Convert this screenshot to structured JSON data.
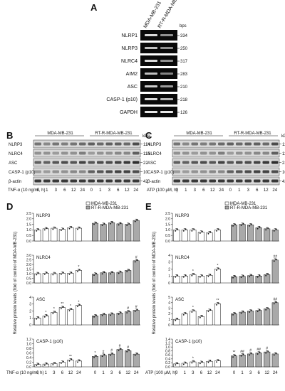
{
  "panels": {
    "A": "A",
    "B": "B",
    "C": "C",
    "D": "D",
    "E": "E"
  },
  "gel": {
    "lane1": "MDA-MB-231",
    "lane2": "RT-R-MDA-MB-231",
    "bps_label": "bps",
    "rows": [
      {
        "name": "NLRP1",
        "bps": "334",
        "i1": 0.85,
        "i2": 0.55
      },
      {
        "name": "NLRP3",
        "bps": "250",
        "i1": 0.75,
        "i2": 0.55
      },
      {
        "name": "NLRC4",
        "bps": "317",
        "i1": 0.85,
        "i2": 0.55
      },
      {
        "name": "AIM2",
        "bps": "283",
        "i1": 0.75,
        "i2": 0.5
      },
      {
        "name": "ASC",
        "bps": "210",
        "i1": 0.8,
        "i2": 0.6
      },
      {
        "name": "CASP-1 (p10)",
        "bps": "218",
        "i1": 0.85,
        "i2": 0.7
      },
      {
        "name": "GAPDH",
        "bps": "126",
        "i1": 0.9,
        "i2": 0.9
      }
    ]
  },
  "blots": {
    "B": {
      "group1": "MDA-MB-231",
      "group2": "RT-R-MDA-MB-231",
      "kda": "kDa",
      "treatment": "TNF-α (10 ng/ml, h)",
      "times": [
        "0",
        "1",
        "3",
        "6",
        "12",
        "24",
        "0",
        "1",
        "3",
        "6",
        "12",
        "24"
      ],
      "bands": [
        {
          "name": "NLRP3",
          "kda": "114"
        },
        {
          "name": "NLRC4",
          "kda": "116"
        },
        {
          "name": "ASC",
          "kda": "22"
        },
        {
          "name": "CASP-1 (p10)",
          "kda": "10"
        },
        {
          "name": "β-actin",
          "kda": "42"
        }
      ]
    },
    "C": {
      "group1": "MDA-MB-231",
      "group2": "RT-R-MDA-MB-231",
      "kda": "kDa",
      "treatment": "ATP (100 μM, h)",
      "times": [
        "0",
        "1",
        "3",
        "6",
        "12",
        "24",
        "0",
        "1",
        "3",
        "6",
        "12",
        "24"
      ],
      "bands": [
        {
          "name": "NLRP3",
          "kda": "114"
        },
        {
          "name": "NLRC4",
          "kda": "116"
        },
        {
          "name": "ASC",
          "kda": "22"
        },
        {
          "name": "CASP-1 (p10)",
          "kda": "10"
        },
        {
          "name": "β-actin",
          "kda": "42"
        }
      ]
    }
  },
  "chart_data": [
    {
      "type": "bar",
      "panel": "D",
      "ylabel": "Relative protein levels (fold of control of MDA-MB-231)",
      "xlabel": "TNF-α (10 ng/ml, h)",
      "categories": [
        "0",
        "1",
        "3",
        "6",
        "12",
        "24",
        "0",
        "1",
        "3",
        "6",
        "12",
        "24"
      ],
      "legend": [
        "MDA-MB-231",
        "RT-R-MDA-MB-231"
      ],
      "legend_colors": [
        "#ffffff",
        "#a9a9a9"
      ],
      "subplots": [
        {
          "title": "NLRP3",
          "ylim": [
            0,
            2.5
          ],
          "ticks": [
            "0.0",
            "0.5",
            "1.0",
            "1.5",
            "2.0",
            "2.5"
          ],
          "values": [
            1.0,
            1.1,
            1.15,
            1.05,
            1.2,
            1.15,
            1.6,
            1.5,
            1.65,
            1.55,
            1.5,
            1.85
          ],
          "marks": [
            "",
            "",
            "",
            "",
            "",
            "",
            "",
            "",
            "",
            "",
            "",
            ""
          ]
        },
        {
          "title": "NLRC4",
          "ylim": [
            0,
            3.0
          ],
          "ticks": [
            "0.0",
            "0.5",
            "1.0",
            "1.5",
            "2.0",
            "2.5",
            "3.0"
          ],
          "values": [
            1.0,
            1.05,
            1.0,
            1.05,
            1.05,
            1.35,
            0.95,
            1.1,
            1.1,
            1.15,
            1.35,
            2.4
          ],
          "marks": [
            "",
            "",
            "",
            "",
            "",
            "*",
            "",
            "",
            "",
            "",
            "",
            "#"
          ]
        },
        {
          "title": "ASC",
          "ylim": [
            0,
            4.0
          ],
          "ticks": [
            "0",
            "1",
            "2",
            "3",
            "4"
          ],
          "values": [
            1.0,
            1.3,
            1.8,
            2.5,
            2.2,
            2.8,
            1.3,
            1.5,
            1.55,
            1.7,
            1.9,
            2.1
          ],
          "marks": [
            "",
            "*",
            "*",
            "**",
            "*",
            "*",
            "",
            "",
            "",
            "",
            "#",
            "#"
          ]
        },
        {
          "title": "CASP-1 (p10)",
          "ylim": [
            0,
            1.2
          ],
          "ticks": [
            "0.0",
            "0.2",
            "0.4",
            "0.6",
            "0.8",
            "1.0",
            "1.2"
          ],
          "values": [
            0.1,
            0.12,
            0.14,
            0.2,
            0.3,
            0.25,
            0.45,
            0.5,
            0.55,
            0.75,
            0.7,
            0.55
          ],
          "marks": [
            "",
            "",
            "",
            "",
            "**",
            "",
            "*",
            "#",
            "#",
            "#",
            "#",
            ""
          ]
        }
      ]
    },
    {
      "type": "bar",
      "panel": "E",
      "ylabel": "Relative protein levels (fold of control of MDA-MB-231)",
      "xlabel": "ATP (100 μM, h)",
      "categories": [
        "0",
        "1",
        "3",
        "6",
        "12",
        "24",
        "0",
        "1",
        "3",
        "6",
        "12",
        "24"
      ],
      "legend": [
        "MDA-MB-231",
        "RT-R-MDA-MB-231"
      ],
      "legend_colors": [
        "#ffffff",
        "#a9a9a9"
      ],
      "subplots": [
        {
          "title": "NLRP3",
          "ylim": [
            0,
            2.5
          ],
          "ticks": [
            "0.0",
            "0.5",
            "1.0",
            "1.5",
            "2.0",
            "2.5"
          ],
          "values": [
            1.0,
            1.0,
            1.0,
            0.8,
            0.75,
            1.0,
            1.45,
            1.5,
            1.45,
            1.2,
            1.1,
            1.0
          ],
          "marks": [
            "",
            "",
            "",
            "",
            "",
            "",
            "",
            "",
            "",
            "",
            "",
            ""
          ]
        },
        {
          "title": "NLRC4",
          "ylim": [
            0,
            4.0
          ],
          "ticks": [
            "0",
            "1",
            "2",
            "3",
            "4"
          ],
          "values": [
            1.0,
            1.0,
            1.2,
            1.0,
            1.1,
            2.0,
            0.9,
            0.95,
            1.05,
            1.0,
            1.2,
            3.3
          ],
          "marks": [
            "",
            "",
            "*",
            "",
            "",
            "*",
            "",
            "",
            "",
            "",
            "",
            "##"
          ]
        },
        {
          "title": "ASC",
          "ylim": [
            0,
            5.0
          ],
          "ticks": [
            "0",
            "1",
            "2",
            "3",
            "4",
            "5"
          ],
          "values": [
            1.0,
            2.0,
            2.5,
            1.5,
            2.6,
            3.8,
            2.0,
            2.3,
            2.5,
            2.6,
            2.9,
            4.0
          ],
          "marks": [
            "",
            "",
            "*",
            "",
            "",
            "**",
            "",
            "",
            "",
            "",
            "",
            "##"
          ]
        },
        {
          "title": "CASP-1 (p10)",
          "ylim": [
            0,
            1.4
          ],
          "ticks": [
            "0.0",
            "0.2",
            "0.4",
            "0.6",
            "0.8",
            "1.0",
            "1.2",
            "1.4"
          ],
          "values": [
            0.15,
            0.18,
            0.25,
            0.22,
            0.28,
            0.3,
            0.55,
            0.6,
            0.65,
            0.7,
            0.75,
            0.65
          ],
          "marks": [
            "",
            "",
            "*",
            "",
            "",
            "",
            "**",
            "##",
            "#",
            "##",
            "#",
            ""
          ]
        }
      ]
    }
  ]
}
